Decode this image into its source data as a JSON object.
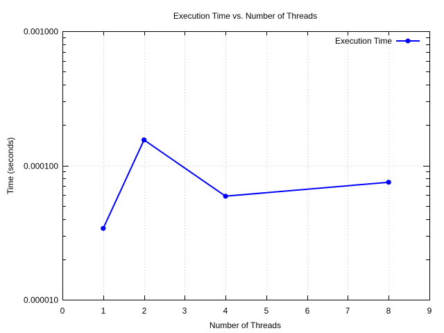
{
  "chart_data": {
    "type": "line",
    "title": "Execution Time vs. Number of Threads",
    "xlabel": "Number of Threads",
    "ylabel": "Time (seconds)",
    "xlim": [
      0,
      9
    ],
    "ylim": [
      1e-05,
      0.001
    ],
    "yscale": "log",
    "grid": true,
    "legend_position": "top-right",
    "x_ticks": [
      "0",
      "1",
      "2",
      "3",
      "4",
      "5",
      "6",
      "7",
      "8",
      "9"
    ],
    "y_ticks": [
      {
        "value": 0.001,
        "label": "0.001000"
      },
      {
        "value": 0.0001,
        "label": "0.000100"
      },
      {
        "value": 1e-05,
        "label": "0.000010"
      }
    ],
    "series": [
      {
        "name": "Execution Time",
        "color": "#0000ff",
        "marker": "circle",
        "x": [
          1,
          2,
          4,
          8
        ],
        "y": [
          3.4e-05,
          0.000155,
          5.9e-05,
          7.5e-05
        ]
      }
    ]
  }
}
